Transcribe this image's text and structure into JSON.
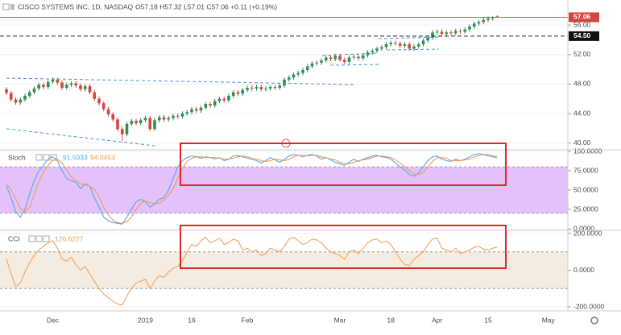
{
  "chart_data": [
    {
      "type": "candlestick",
      "title": "CISCO SYSTEMS INC, 1D, NASDAQ",
      "ohlc_text": "O57.18 H57.32 L57.01 C57.06 +0.11 (+0.19%)",
      "categories": [
        null,
        null,
        null,
        null,
        null,
        null,
        null,
        null,
        null,
        null,
        "Dec",
        null,
        null,
        null,
        null,
        null,
        null,
        null,
        null,
        null,
        null,
        null,
        null,
        null,
        null,
        null,
        null,
        null,
        null,
        null,
        "2019",
        null,
        null,
        null,
        null,
        null,
        null,
        null,
        null,
        null,
        "16",
        null,
        null,
        null,
        null,
        null,
        null,
        null,
        null,
        null,
        null,
        null,
        "Feb",
        null,
        null,
        null,
        null,
        null,
        null,
        null,
        null,
        null,
        null,
        null,
        null,
        null,
        null,
        null,
        null,
        null,
        null,
        null,
        "Mar",
        null,
        null,
        null,
        null,
        null,
        null,
        null,
        null,
        null,
        null,
        "18",
        null,
        null,
        null,
        null,
        null,
        null,
        null,
        null,
        null,
        "Apr",
        null,
        null,
        null,
        null,
        null,
        null,
        null,
        null,
        null,
        null,
        "15",
        null,
        null,
        null,
        null,
        null,
        null,
        null,
        null,
        null,
        null,
        null,
        null,
        "May"
      ],
      "open": [
        47.3,
        46.8,
        45.9,
        45.5,
        45.9,
        46.4,
        46.9,
        47.4,
        47.9,
        47.6,
        48.3,
        48.6,
        48.2,
        47.5,
        47.9,
        48.1,
        47.8,
        47.3,
        47.7,
        46.9,
        46.0,
        45.4,
        44.6,
        43.9,
        43.2,
        41.9,
        41.2,
        42.6,
        43.0,
        42.7,
        43.1,
        43.4,
        41.9,
        43.1,
        43.5,
        43.2,
        43.4,
        43.7,
        43.6,
        44.0,
        44.2,
        44.6,
        44.4,
        44.8,
        45.3,
        45.1,
        45.7,
        46.0,
        45.8,
        46.4,
        46.9,
        46.7,
        47.2,
        47.5,
        47.4,
        47.6,
        47.3,
        47.4,
        47.6,
        47.5,
        47.8,
        48.6,
        48.9,
        49.3,
        49.5,
        49.9,
        50.4,
        50.8,
        50.9,
        51.2,
        51.6,
        51.4,
        51.8,
        51.3,
        51.0,
        51.6,
        51.7,
        51.5,
        51.9,
        52.3,
        52.5,
        52.8,
        53.0,
        53.4,
        53.6,
        53.5,
        53.2,
        53.4,
        52.8,
        53.1,
        53.4,
        53.9,
        54.3,
        55.0,
        55.1,
        54.8,
        55.0,
        54.9,
        55.2,
        55.1,
        55.4,
        55.8,
        56.2,
        56.4,
        56.7,
        56.9,
        57.18,
        null,
        null,
        null,
        null,
        null,
        null,
        null,
        null,
        null,
        null,
        null
      ],
      "high": [
        47.6,
        47.1,
        46.2,
        46.2,
        46.7,
        47.2,
        47.7,
        48.2,
        48.2,
        48.6,
        48.9,
        48.9,
        48.5,
        48.2,
        48.4,
        48.4,
        48.1,
        48.0,
        48.0,
        47.2,
        46.3,
        45.7,
        44.9,
        44.2,
        43.5,
        42.2,
        42.9,
        43.3,
        43.3,
        43.4,
        43.7,
        43.7,
        43.4,
        43.8,
        43.8,
        43.7,
        44.0,
        44.0,
        44.3,
        44.5,
        44.9,
        44.9,
        45.1,
        45.6,
        45.6,
        46.0,
        46.3,
        46.3,
        46.7,
        47.2,
        47.2,
        47.5,
        47.8,
        47.8,
        47.9,
        47.9,
        47.7,
        47.9,
        47.9,
        48.1,
        48.9,
        49.2,
        49.6,
        49.8,
        50.2,
        50.7,
        51.1,
        51.2,
        51.5,
        51.9,
        51.9,
        52.1,
        52.1,
        51.6,
        51.9,
        52.0,
        52.0,
        52.2,
        52.6,
        52.8,
        53.1,
        53.3,
        53.7,
        53.9,
        53.9,
        53.8,
        53.7,
        53.7,
        53.4,
        53.7,
        54.2,
        54.6,
        55.3,
        55.4,
        55.4,
        55.3,
        55.3,
        55.5,
        55.5,
        55.7,
        56.1,
        56.5,
        56.7,
        57.0,
        57.2,
        57.25,
        57.32,
        null,
        null,
        null,
        null,
        null,
        null,
        null,
        null,
        null,
        null,
        null
      ],
      "low": [
        46.5,
        45.6,
        45.2,
        45.2,
        45.6,
        46.1,
        46.6,
        47.1,
        47.3,
        47.3,
        48.0,
        47.9,
        47.2,
        47.2,
        47.6,
        47.5,
        47.0,
        47.0,
        46.6,
        45.7,
        45.1,
        44.3,
        43.6,
        42.9,
        41.6,
        40.3,
        40.9,
        42.3,
        42.4,
        42.4,
        42.8,
        41.6,
        41.6,
        42.8,
        42.9,
        42.9,
        43.1,
        43.3,
        43.3,
        43.7,
        43.9,
        44.1,
        44.1,
        44.5,
        44.8,
        44.8,
        45.4,
        45.5,
        45.5,
        46.1,
        46.4,
        46.4,
        46.9,
        47.1,
        47.1,
        47.0,
        47.0,
        47.1,
        47.2,
        47.2,
        47.5,
        48.3,
        48.6,
        49.0,
        49.2,
        49.6,
        50.1,
        50.5,
        50.6,
        50.9,
        51.1,
        51.1,
        51.0,
        50.7,
        50.7,
        51.3,
        51.2,
        51.2,
        51.6,
        52.0,
        52.2,
        52.5,
        52.7,
        53.1,
        53.2,
        52.9,
        52.9,
        52.5,
        52.5,
        52.8,
        53.1,
        53.6,
        54.0,
        54.7,
        54.5,
        54.5,
        54.6,
        54.6,
        54.8,
        54.8,
        55.1,
        55.5,
        55.9,
        56.1,
        56.4,
        56.6,
        57.01,
        null,
        null,
        null,
        null,
        null,
        null,
        null,
        null,
        null,
        null,
        null
      ],
      "close": [
        46.8,
        45.9,
        45.5,
        45.9,
        46.4,
        46.9,
        47.4,
        47.9,
        47.6,
        48.3,
        48.6,
        48.2,
        47.5,
        47.9,
        48.1,
        47.8,
        47.3,
        47.7,
        46.9,
        46.0,
        45.4,
        44.6,
        43.9,
        43.2,
        41.9,
        41.2,
        42.6,
        43.0,
        42.7,
        43.1,
        43.4,
        41.9,
        43.1,
        43.5,
        43.2,
        43.4,
        43.7,
        43.6,
        44.0,
        44.2,
        44.6,
        44.4,
        44.8,
        45.3,
        45.1,
        45.7,
        46.0,
        45.8,
        46.4,
        46.9,
        46.7,
        47.2,
        47.5,
        47.4,
        47.6,
        47.3,
        47.4,
        47.6,
        47.5,
        47.8,
        48.6,
        48.9,
        49.3,
        49.5,
        49.9,
        50.4,
        50.8,
        50.9,
        51.2,
        51.6,
        51.4,
        51.8,
        51.3,
        51.0,
        51.6,
        51.7,
        51.5,
        51.9,
        52.3,
        52.5,
        52.8,
        53.0,
        53.4,
        53.6,
        53.5,
        53.2,
        53.4,
        52.8,
        53.1,
        53.4,
        53.9,
        54.3,
        55.0,
        55.1,
        54.8,
        55.0,
        54.9,
        55.2,
        55.1,
        55.4,
        55.8,
        56.2,
        56.4,
        56.7,
        56.9,
        56.95,
        57.06,
        null,
        null,
        null,
        null,
        null,
        null,
        null,
        null,
        null,
        null,
        null
      ],
      "up_color": "#2f8f55",
      "down_color": "#d2463e",
      "ylim": [
        39.2,
        59.4
      ],
      "yticks": [
        {
          "value": 40,
          "label": "40.00"
        },
        {
          "value": 44,
          "label": "44.00"
        },
        {
          "value": 48,
          "label": "48.00"
        },
        {
          "value": 52,
          "label": "52.00"
        },
        {
          "value": 56,
          "label": "56.00"
        }
      ],
      "hline": {
        "value": 54.5,
        "label": "54.50"
      },
      "grid": true
    },
    {
      "type": "line",
      "title": "Stoch",
      "series": [
        {
          "color": "#56a8ea",
          "values": [
            55,
            40,
            22,
            15,
            25,
            45,
            62,
            75,
            82,
            90,
            93,
            88,
            75,
            65,
            62,
            60,
            52,
            58,
            55,
            40,
            28,
            15,
            10,
            8,
            7,
            6,
            15,
            25,
            35,
            38,
            35,
            28,
            32,
            38,
            40,
            50,
            65,
            80,
            88,
            92,
            94,
            93,
            91,
            93,
            92,
            90,
            92,
            88,
            90,
            94,
            95,
            93,
            91,
            90,
            88,
            85,
            88,
            92,
            89,
            86,
            90,
            94,
            96,
            95,
            93,
            95,
            96,
            94,
            90,
            92,
            89,
            86,
            84,
            82,
            86,
            90,
            87,
            90,
            92,
            94,
            95,
            93,
            92,
            90,
            85,
            80,
            76,
            70,
            68,
            72,
            80,
            88,
            93,
            94,
            90,
            88,
            87,
            90,
            88,
            90,
            93,
            96,
            97,
            96,
            94,
            93,
            91.5933,
            null,
            null,
            null,
            null,
            null,
            null,
            null,
            null,
            null,
            null,
            null
          ]
        },
        {
          "color": "#f39a55",
          "values": [
            58,
            50,
            39,
            26,
            21,
            28,
            44,
            61,
            73,
            82,
            88,
            90,
            85,
            76,
            67,
            62,
            58,
            57,
            55,
            51,
            41,
            28,
            18,
            11,
            8,
            7,
            9,
            15,
            25,
            33,
            36,
            34,
            32,
            33,
            37,
            43,
            52,
            65,
            78,
            87,
            91,
            93,
            93,
            92,
            92,
            92,
            91,
            90,
            90,
            91,
            93,
            94,
            93,
            91,
            90,
            88,
            87,
            88,
            90,
            89,
            88,
            90,
            93,
            95,
            95,
            94,
            95,
            95,
            93,
            92,
            90,
            89,
            86,
            84,
            84,
            86,
            88,
            89,
            90,
            92,
            94,
            94,
            93,
            92,
            89,
            85,
            80,
            75,
            71,
            70,
            73,
            80,
            87,
            92,
            92,
            91,
            88,
            88,
            88,
            89,
            90,
            93,
            95,
            96,
            96,
            94,
            94.0453,
            null,
            null,
            null,
            null,
            null,
            null,
            null,
            null,
            null,
            null,
            null
          ]
        }
      ],
      "band": [
        20,
        80
      ],
      "band_color": "#e3c2fb",
      "ylim": [
        0,
        100
      ],
      "yticks": [
        {
          "value": 0,
          "label": "0.0000"
        },
        {
          "value": 25,
          "label": "25.0000"
        },
        {
          "value": 50,
          "label": "50.0000"
        },
        {
          "value": 75,
          "label": "75.0000"
        },
        {
          "value": 100,
          "label": "100.0000"
        }
      ]
    },
    {
      "type": "line",
      "title": "CCI",
      "series": [
        {
          "color": "#f5a25a",
          "values": [
            60,
            -20,
            -90,
            -70,
            -10,
            40,
            80,
            110,
            130,
            150,
            160,
            120,
            60,
            50,
            70,
            30,
            0,
            20,
            -20,
            -60,
            -100,
            -130,
            -150,
            -170,
            -185,
            -190,
            -140,
            -100,
            -70,
            -60,
            -50,
            -100,
            -60,
            -30,
            -40,
            -10,
            10,
            20,
            50,
            100,
            140,
            130,
            160,
            180,
            150,
            160,
            175,
            140,
            150,
            170,
            160,
            110,
            120,
            100,
            110,
            80,
            90,
            120,
            110,
            100,
            130,
            170,
            180,
            160,
            140,
            150,
            170,
            165,
            150,
            120,
            100,
            90,
            80,
            60,
            100,
            110,
            90,
            120,
            150,
            165,
            170,
            150,
            160,
            140,
            100,
            60,
            30,
            25,
            60,
            80,
            100,
            140,
            170,
            175,
            120,
            110,
            100,
            120,
            90,
            100,
            110,
            125,
            130,
            115,
            110,
            120,
            126.6227,
            null,
            null,
            null,
            null,
            null,
            null,
            null,
            null,
            null,
            null,
            null
          ]
        }
      ],
      "band": [
        -100,
        100
      ],
      "band_color": "#f5ece1",
      "ylim": [
        -200,
        200
      ],
      "yticks": [
        {
          "value": -200,
          "label": "-200.0000"
        },
        {
          "value": 0,
          "label": "0.0000"
        },
        {
          "value": 200,
          "label": "200.0000"
        }
      ]
    }
  ]
}
